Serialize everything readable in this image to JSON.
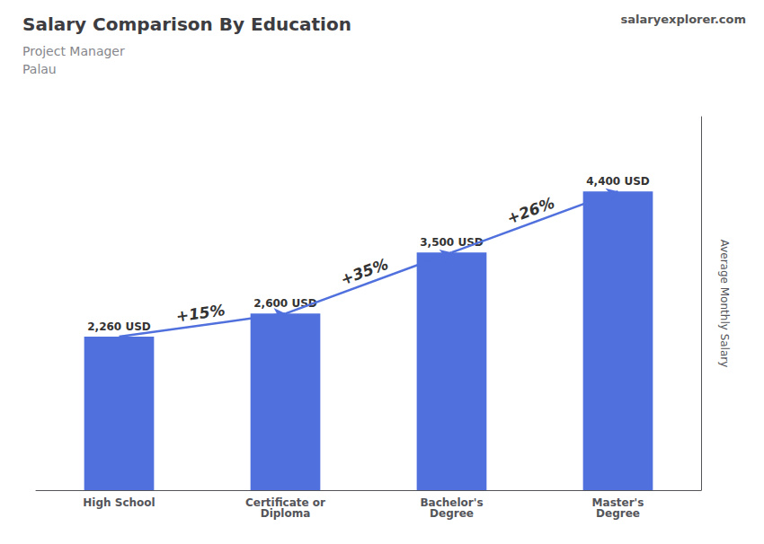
{
  "chart_data": {
    "type": "bar",
    "title": "Salary Comparison By Education",
    "subtitle": [
      "Project Manager",
      "Palau"
    ],
    "ylabel": "Average Monthly Salary",
    "categories": [
      "High School",
      "Certificate or\nDiploma",
      "Bachelor's\nDegree",
      "Master's\nDegree"
    ],
    "values": [
      2260,
      2600,
      3500,
      4400
    ],
    "value_labels": [
      "2,260 USD",
      "2,600 USD",
      "3,500 USD",
      "4,400 USD"
    ],
    "data_labels": true,
    "ylim": [
      0,
      5500
    ],
    "tick_labels": "x",
    "grid": false,
    "annotations": [
      {
        "text": "+15%",
        "from": "High School",
        "to": "Certificate or\nDiploma"
      },
      {
        "text": "+35%",
        "from": "Certificate or\nDiploma",
        "to": "Bachelor's\nDegree"
      },
      {
        "text": "+26%",
        "from": "Bachelor's\nDegree",
        "to": "Master's\nDegree"
      },
      {
        "text": "salaryexplorer.com"
      }
    ]
  }
}
